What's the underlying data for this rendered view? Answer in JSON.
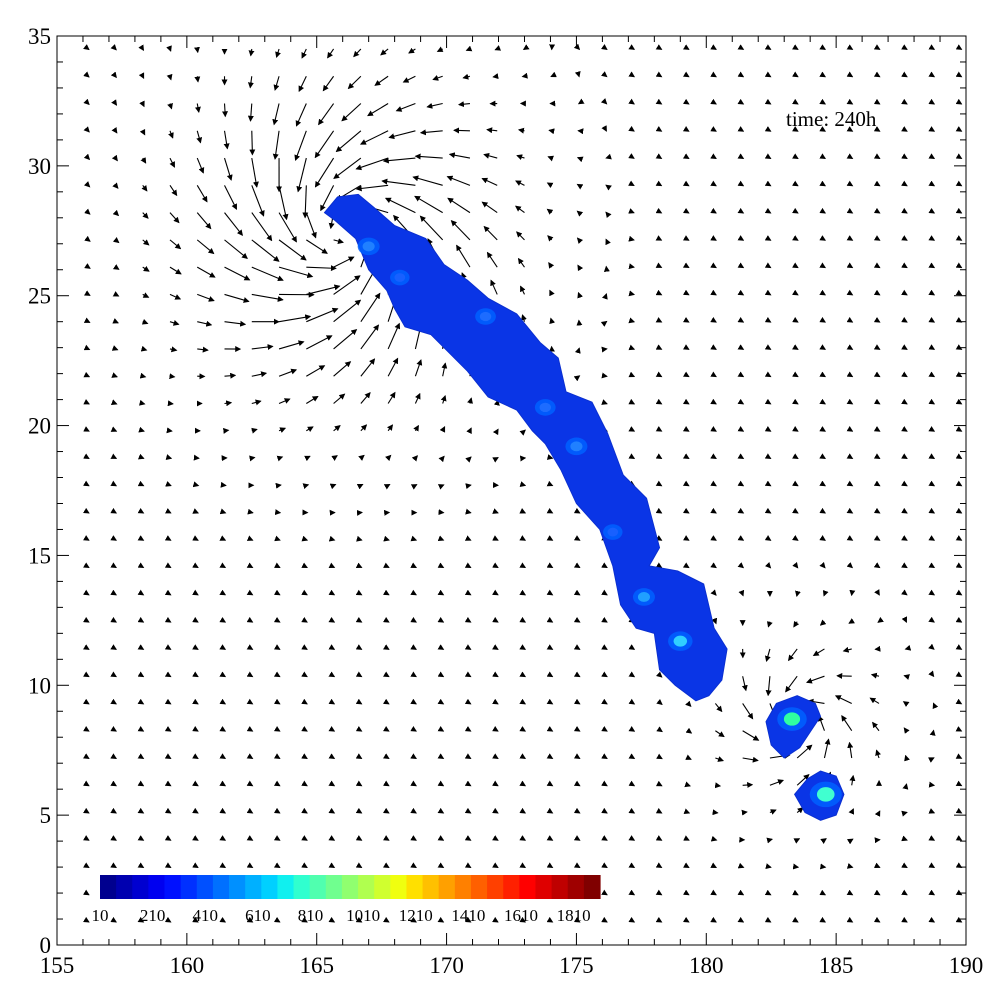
{
  "chart_data": {
    "type": "contour-quiver",
    "title": "",
    "xlabel": "",
    "ylabel": "",
    "xlim": [
      155,
      190
    ],
    "ylim": [
      0,
      35
    ],
    "x_ticks": [
      155,
      160,
      165,
      170,
      175,
      180,
      185,
      190
    ],
    "y_ticks": [
      0,
      5,
      10,
      15,
      20,
      25,
      30,
      35
    ],
    "x_tick_labels": [
      "155",
      "160",
      "165",
      "170",
      "175",
      "180",
      "185",
      "190"
    ],
    "y_tick_labels": [
      "0",
      "5",
      "10",
      "15",
      "20",
      "25",
      "30",
      "35"
    ],
    "annotation": "time: 240h",
    "grid": false,
    "colorbar": {
      "placement": "bottom-left",
      "min": 10,
      "max": 1910,
      "step": 200,
      "labels": [
        "10",
        "210",
        "410",
        "610",
        "810",
        "1010",
        "1210",
        "1410",
        "1610",
        "1810"
      ],
      "colors": [
        "#00008f",
        "#0000b0",
        "#0000d0",
        "#0000f0",
        "#0010ff",
        "#0030ff",
        "#0050ff",
        "#0070ff",
        "#0090ff",
        "#00b0ff",
        "#00d0ff",
        "#10f0ef",
        "#30ffcf",
        "#50ffaf",
        "#70ff8f",
        "#90ff6f",
        "#b0ff4f",
        "#d0ff2f",
        "#f0ff0f",
        "#ffe000",
        "#ffc000",
        "#ffa000",
        "#ff8000",
        "#ff6000",
        "#ff4000",
        "#ff2000",
        "#ff0000",
        "#df0000",
        "#bf0000",
        "#9f0000",
        "#800000"
      ]
    },
    "contour_regions": [
      {
        "name": "main-band",
        "fill_color": "#0a35e6",
        "outline": [
          [
            165.3,
            28.2
          ],
          [
            165.8,
            28.8
          ],
          [
            166.6,
            28.9
          ],
          [
            167.2,
            28.4
          ],
          [
            168.0,
            27.7
          ],
          [
            169.2,
            27.2
          ],
          [
            169.9,
            26.2
          ],
          [
            170.8,
            25.6
          ],
          [
            171.6,
            24.9
          ],
          [
            172.7,
            24.3
          ],
          [
            173.6,
            23.2
          ],
          [
            174.3,
            22.6
          ],
          [
            174.6,
            21.3
          ],
          [
            175.6,
            20.9
          ],
          [
            176.2,
            19.7
          ],
          [
            176.8,
            18.1
          ],
          [
            177.7,
            17.2
          ],
          [
            178.2,
            15.3
          ],
          [
            177.8,
            14.6
          ],
          [
            178.9,
            14.4
          ],
          [
            179.9,
            13.9
          ],
          [
            180.3,
            12.2
          ],
          [
            180.8,
            11.4
          ],
          [
            180.6,
            10.2
          ],
          [
            180.1,
            9.6
          ],
          [
            179.6,
            9.4
          ],
          [
            178.8,
            10.0
          ],
          [
            178.2,
            10.6
          ],
          [
            178.0,
            12.0
          ],
          [
            177.3,
            12.2
          ],
          [
            176.7,
            13.1
          ],
          [
            176.4,
            14.6
          ],
          [
            175.9,
            16.0
          ],
          [
            175.0,
            17.0
          ],
          [
            174.4,
            18.3
          ],
          [
            173.8,
            19.3
          ],
          [
            173.3,
            19.8
          ],
          [
            172.7,
            20.6
          ],
          [
            171.6,
            21.1
          ],
          [
            170.8,
            22.1
          ],
          [
            169.4,
            23.5
          ],
          [
            168.4,
            23.8
          ],
          [
            168.0,
            24.5
          ],
          [
            167.7,
            25.2
          ],
          [
            167.0,
            26.0
          ],
          [
            166.5,
            27.2
          ],
          [
            165.7,
            27.9
          ]
        ]
      },
      {
        "name": "blob-north",
        "fill_color": "#0a35e6",
        "outline": [
          [
            182.3,
            8.6
          ],
          [
            182.7,
            9.3
          ],
          [
            183.5,
            9.6
          ],
          [
            184.2,
            9.3
          ],
          [
            184.4,
            8.8
          ],
          [
            184.0,
            8.2
          ],
          [
            183.6,
            7.6
          ],
          [
            183.0,
            7.2
          ],
          [
            182.5,
            7.7
          ]
        ]
      },
      {
        "name": "blob-south",
        "fill_color": "#0a35e6",
        "outline": [
          [
            183.4,
            5.8
          ],
          [
            183.9,
            6.4
          ],
          [
            184.4,
            6.7
          ],
          [
            185.0,
            6.5
          ],
          [
            185.3,
            5.8
          ],
          [
            185.0,
            5.0
          ],
          [
            184.4,
            4.8
          ],
          [
            183.8,
            5.1
          ]
        ]
      }
    ],
    "hotspots": [
      {
        "x": 184.6,
        "y": 5.8,
        "value": 800,
        "color": "#40ffd0"
      },
      {
        "x": 183.3,
        "y": 8.7,
        "value": 700,
        "color": "#30ffa0"
      },
      {
        "x": 179.0,
        "y": 11.7,
        "value": 500,
        "color": "#30d0ff"
      },
      {
        "x": 177.6,
        "y": 13.4,
        "value": 400,
        "color": "#20a0ff"
      },
      {
        "x": 175.0,
        "y": 19.2,
        "value": 400,
        "color": "#2080ff"
      },
      {
        "x": 173.8,
        "y": 20.7,
        "value": 350,
        "color": "#1d6cff"
      },
      {
        "x": 171.5,
        "y": 24.2,
        "value": 350,
        "color": "#1d6cff"
      },
      {
        "x": 168.2,
        "y": 25.7,
        "value": 300,
        "color": "#1860ff"
      },
      {
        "x": 167.0,
        "y": 26.9,
        "value": 400,
        "color": "#2080ff"
      },
      {
        "x": 176.4,
        "y": 15.9,
        "value": 300,
        "color": "#1860ff"
      }
    ],
    "vector_field": {
      "grid_x": {
        "start": 156.2,
        "step": 1.05,
        "count": 33
      },
      "grid_y": {
        "start": 0.9,
        "step": 1.05,
        "count": 33
      },
      "vortices": [
        {
          "x": 166.1,
          "y": 27.4,
          "strength": 3.0,
          "radius": 3.2
        },
        {
          "x": 183.6,
          "y": 8.7,
          "strength": 1.7,
          "radius": 1.7
        }
      ],
      "background": [
        0.05,
        -0.03
      ]
    }
  }
}
